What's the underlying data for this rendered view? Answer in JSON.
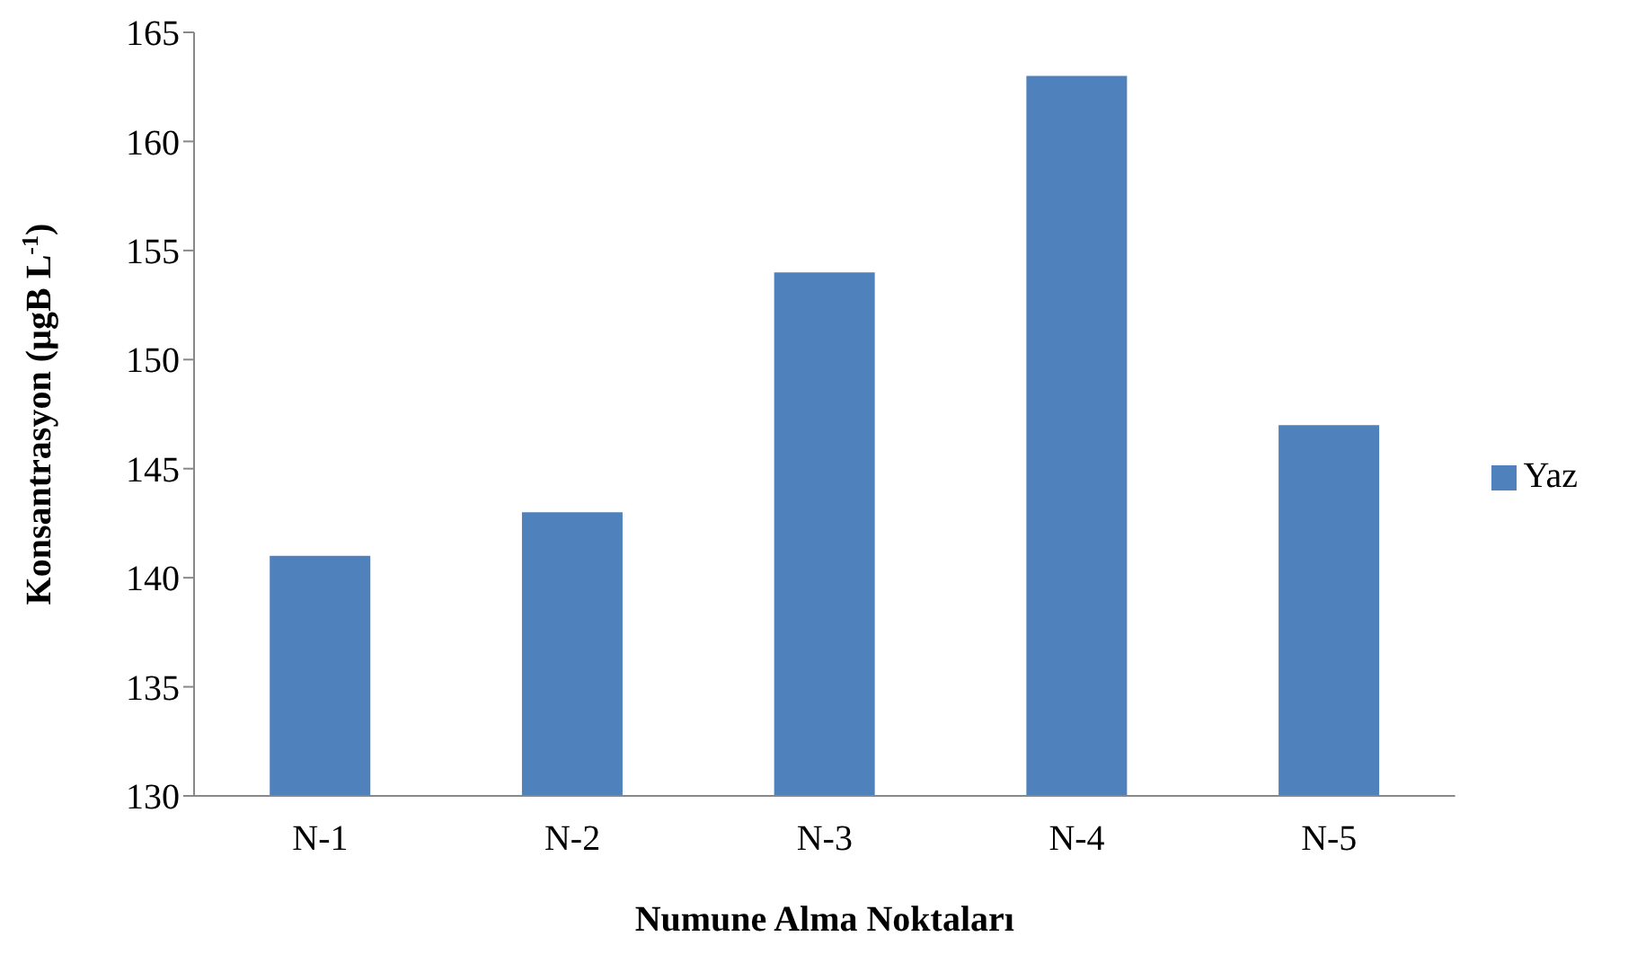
{
  "chart_data": {
    "type": "bar",
    "xlabel": "Numune Alma Noktaları",
    "ylabel": "Konsantrasyon (µgB L$^{-1}$)",
    "categories": [
      "N-1",
      "N-2",
      "N-3",
      "N-4",
      "N-5"
    ],
    "series": [
      {
        "name": "Yaz",
        "color": "#4f81bd",
        "values": [
          141,
          143,
          154,
          163,
          147
        ]
      }
    ],
    "ylim": [
      130,
      165
    ],
    "yticks": [
      130,
      135,
      140,
      145,
      150,
      155,
      160,
      165
    ],
    "grid": false,
    "legend": "right"
  }
}
